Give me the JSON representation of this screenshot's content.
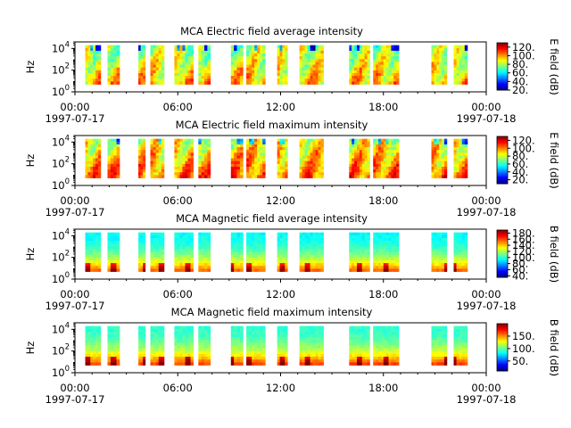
{
  "chart_data": [
    {
      "type": "heatmap",
      "title": "MCA  Electric field average intensity",
      "ylabel": "Hz",
      "yscale": "log",
      "ylim": [
        1,
        40000
      ],
      "ytick_values": [
        1,
        100,
        10000
      ],
      "ytick_labels": [
        {
          "base": "10",
          "exp": "0"
        },
        {
          "base": "10",
          "exp": "2"
        },
        {
          "base": "10",
          "exp": "4"
        }
      ],
      "xlim_hours": [
        0,
        24
      ],
      "xtick_hours": [
        0,
        6,
        12,
        18,
        24
      ],
      "xtick_labels": [
        "00:00",
        "06:00",
        "12:00",
        "18:00",
        "00:00"
      ],
      "start_date": "1997-07-17",
      "end_date": "1997-07-18",
      "colorbar": {
        "label": "E field (dB)",
        "range": [
          20,
          130
        ],
        "ticks": [
          "120.",
          "100.",
          "80.",
          "60.",
          "40.",
          "20."
        ],
        "tick_values": [
          120,
          100,
          80,
          60,
          40,
          20
        ]
      },
      "field": "E",
      "stat": "avg"
    },
    {
      "type": "heatmap",
      "title": "MCA  Electric field maximum intensity",
      "ylabel": "Hz",
      "yscale": "log",
      "ylim": [
        1,
        40000
      ],
      "ytick_values": [
        1,
        100,
        10000
      ],
      "ytick_labels": [
        {
          "base": "10",
          "exp": "0"
        },
        {
          "base": "10",
          "exp": "2"
        },
        {
          "base": "10",
          "exp": "4"
        }
      ],
      "xlim_hours": [
        0,
        24
      ],
      "xtick_hours": [
        0,
        6,
        12,
        18,
        24
      ],
      "xtick_labels": [
        "00:00",
        "06:00",
        "12:00",
        "18:00",
        "00:00"
      ],
      "start_date": "1997-07-17",
      "end_date": "1997-07-18",
      "colorbar": {
        "label": "E field (dB)",
        "range": [
          10,
          130
        ],
        "ticks": [
          "120.",
          "100.",
          "80.",
          "60.",
          "40.",
          "20."
        ],
        "tick_values": [
          120,
          100,
          80,
          60,
          40,
          20
        ]
      },
      "field": "E",
      "stat": "max"
    },
    {
      "type": "heatmap",
      "title": "MCA  Magnetic field average intensity",
      "ylabel": "Hz",
      "yscale": "log",
      "ylim": [
        1,
        40000
      ],
      "ytick_values": [
        1,
        100,
        10000
      ],
      "ytick_labels": [
        {
          "base": "10",
          "exp": "0"
        },
        {
          "base": "10",
          "exp": "2"
        },
        {
          "base": "10",
          "exp": "4"
        }
      ],
      "xlim_hours": [
        0,
        24
      ],
      "xtick_hours": [
        0,
        6,
        12,
        18,
        24
      ],
      "xtick_labels": [
        "00:00",
        "06:00",
        "12:00",
        "18:00",
        "00:00"
      ],
      "start_date": "1997-07-17",
      "end_date": "1997-07-18",
      "colorbar": {
        "label": "B field (dB)",
        "range": [
          35,
          190
        ],
        "ticks": [
          "180.",
          "160.",
          "140.",
          "120.",
          "100.",
          "80.",
          "60.",
          "40."
        ],
        "tick_values": [
          180,
          160,
          140,
          120,
          100,
          80,
          60,
          40
        ]
      },
      "field": "B",
      "stat": "avg"
    },
    {
      "type": "heatmap",
      "title": "MCA  Magnetic field maximum intensity",
      "ylabel": "Hz",
      "yscale": "log",
      "ylim": [
        1,
        40000
      ],
      "ytick_values": [
        1,
        100,
        10000
      ],
      "ytick_labels": [
        {
          "base": "10",
          "exp": "0"
        },
        {
          "base": "10",
          "exp": "2"
        },
        {
          "base": "10",
          "exp": "4"
        }
      ],
      "xlim_hours": [
        0,
        24
      ],
      "xtick_hours": [
        0,
        6,
        12,
        18,
        24
      ],
      "xtick_labels": [
        "00:00",
        "06:00",
        "12:00",
        "18:00",
        "00:00"
      ],
      "start_date": "1997-07-17",
      "end_date": "1997-07-18",
      "colorbar": {
        "label": "B field (dB)",
        "range": [
          10,
          200
        ],
        "ticks": [
          "150.",
          "100.",
          "50."
        ],
        "tick_values": [
          150,
          100,
          50
        ]
      },
      "field": "B",
      "stat": "max"
    }
  ],
  "data_intervals_hours": [
    [
      0.6,
      1.5
    ],
    [
      1.9,
      2.6
    ],
    [
      3.7,
      4.1
    ],
    [
      4.4,
      5.2
    ],
    [
      5.8,
      6.9
    ],
    [
      7.2,
      7.9
    ],
    [
      9.1,
      9.8
    ],
    [
      10.0,
      11.1
    ],
    [
      11.8,
      12.4
    ],
    [
      13.1,
      14.5
    ],
    [
      16.0,
      17.2
    ],
    [
      17.4,
      18.9
    ],
    [
      20.8,
      21.7
    ],
    [
      22.1,
      22.9
    ]
  ],
  "data_freq_range_hz": [
    5,
    20000
  ]
}
